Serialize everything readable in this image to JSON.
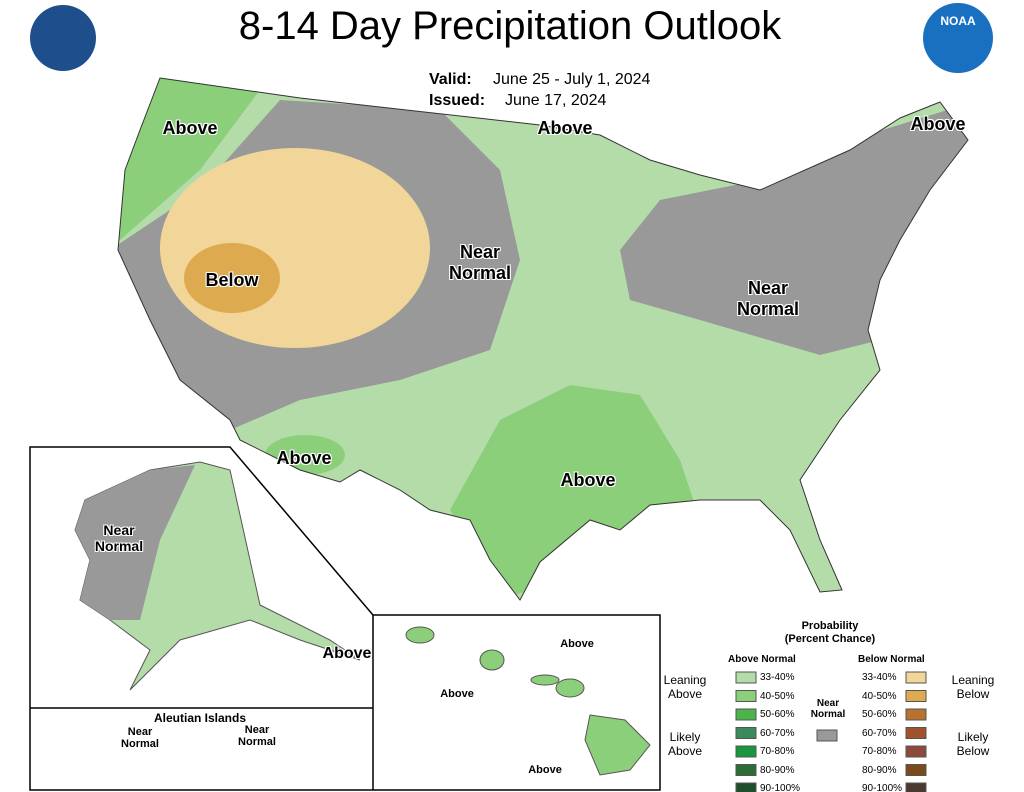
{
  "header": {
    "title": "8-14 Day Precipitation Outlook",
    "valid_label": "Valid:",
    "valid": "June 25 - July 1, 2024",
    "issued_label": "Issued:",
    "issued": "June 17, 2024",
    "logo_right": "NOAA"
  },
  "map_labels": [
    "Above",
    "Above",
    "Above",
    "Below",
    "Near Normal",
    "Near Normal",
    "Above",
    "Above"
  ],
  "alaska_labels": [
    "Near Normal",
    "Above"
  ],
  "aleutian": {
    "title": "Aleutian Islands",
    "labels": [
      "Near Normal",
      "Near Normal"
    ]
  },
  "hawaii_labels": [
    "Above",
    "Above",
    "Above"
  ],
  "legend": {
    "title": "Probability",
    "subtitle": "(Percent Chance)",
    "above_header": "Above Normal",
    "below_header": "Below Normal",
    "near_normal": "Near Normal",
    "near_color": "#999999",
    "leaning_above": "Leaning Above",
    "likely_above": "Likely Above",
    "leaning_below": "Leaning Below",
    "likely_below": "Likely Below",
    "above_items": [
      {
        "label": "33-40%",
        "color": "#b3dca9"
      },
      {
        "label": "40-50%",
        "color": "#8ccf7a"
      },
      {
        "label": "50-60%",
        "color": "#4cb24a"
      },
      {
        "label": "60-70%",
        "color": "#3a8a5c"
      },
      {
        "label": "70-80%",
        "color": "#19973f"
      },
      {
        "label": "80-90%",
        "color": "#2a6e35"
      },
      {
        "label": "90-100%",
        "color": "#1f4e2c"
      }
    ],
    "below_items": [
      {
        "label": "33-40%",
        "color": "#f2d599"
      },
      {
        "label": "40-50%",
        "color": "#ddaa50"
      },
      {
        "label": "50-60%",
        "color": "#b8722f"
      },
      {
        "label": "60-70%",
        "color": "#a0522d"
      },
      {
        "label": "70-80%",
        "color": "#8b4a3a"
      },
      {
        "label": "80-90%",
        "color": "#7a4a1a"
      },
      {
        "label": "90-100%",
        "color": "#4a3a30"
      }
    ]
  }
}
